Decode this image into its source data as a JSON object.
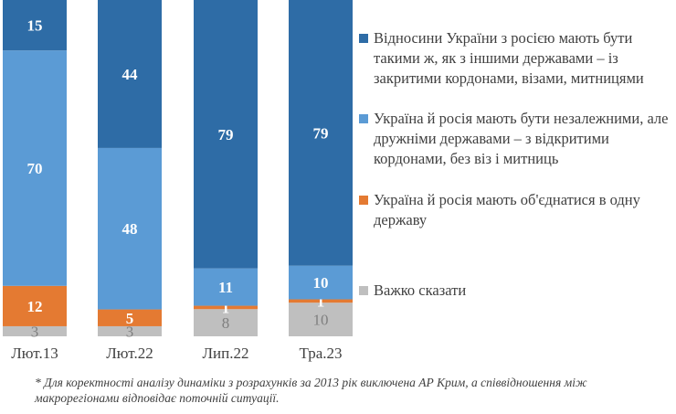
{
  "chart_data": {
    "type": "bar",
    "stacked": true,
    "categories": [
      "Лют.13",
      "Лют.22",
      "Лип.22",
      "Тра.23"
    ],
    "series": [
      {
        "name": "Відносини України з росією мають бути такими ж, як з іншими державами  – із закритими кордонами, візами, митницями",
        "color": "#2e6ca6",
        "values": [
          15,
          44,
          79,
          79
        ]
      },
      {
        "name": "Україна й росія мають бути незалежними, але дружніми державами  – з відкритими кордонами, без віз і митниць",
        "color": "#5b9bd5",
        "values": [
          70,
          48,
          11,
          10
        ]
      },
      {
        "name": "Україна й росія мають об'єднатися в одну державу",
        "color": "#e47a32",
        "values": [
          12,
          5,
          1,
          1
        ]
      },
      {
        "name": "Важко сказати",
        "color": "#bfbfbf",
        "values": [
          3,
          3,
          8,
          10
        ]
      }
    ],
    "ylim": [
      0,
      100
    ],
    "grid": false,
    "legend_position": "right"
  },
  "footnote": "* Для коректності аналізу динаміки з розрахунків за 2013 рік виключена АР Крим, а співвідношення між макрорегіонами відповідає поточній ситуації."
}
